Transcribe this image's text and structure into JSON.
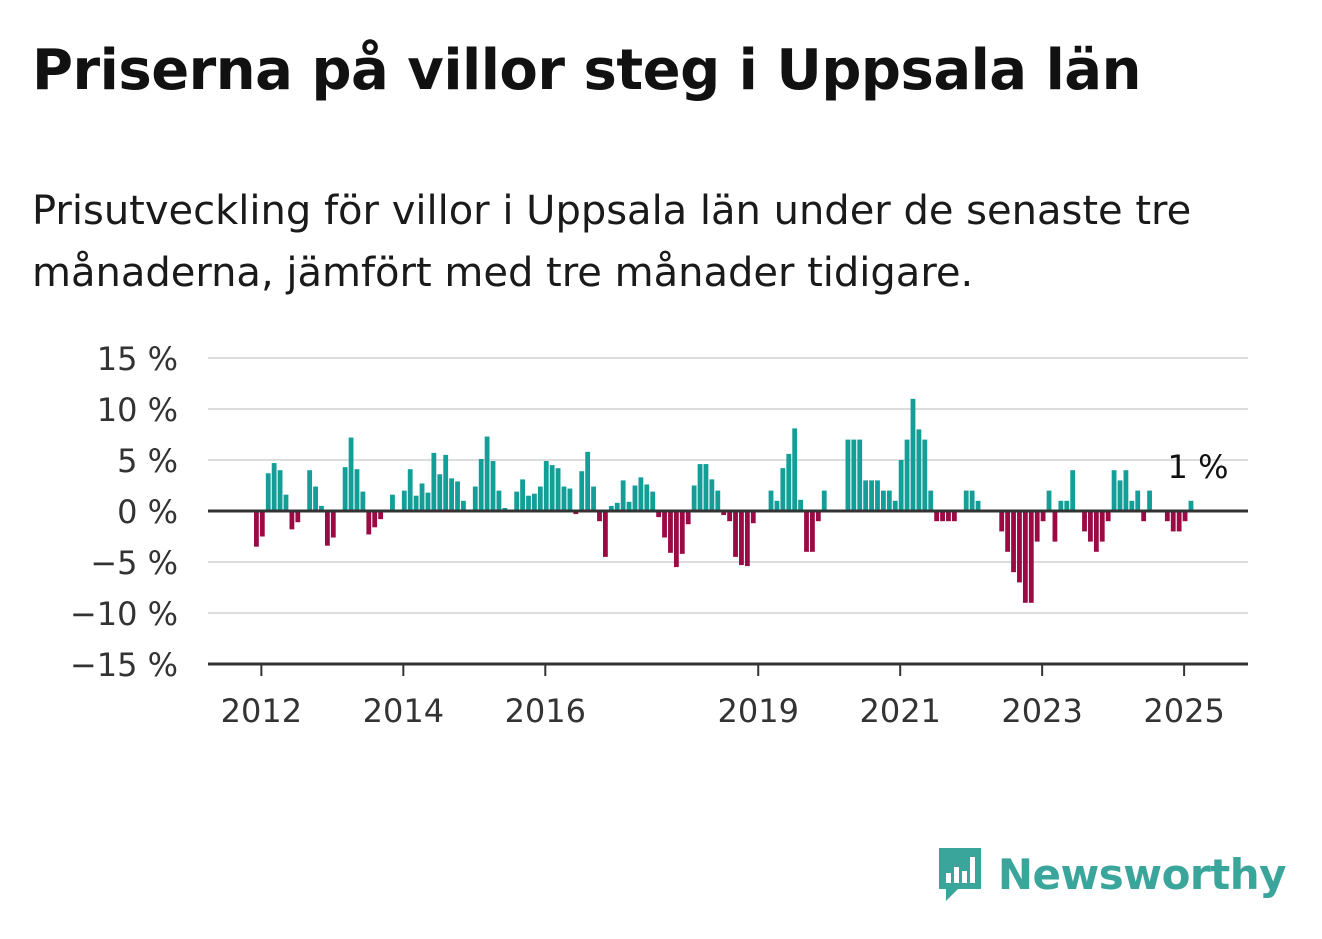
{
  "header": {
    "title": "Priserna på villor steg i Uppsala län",
    "subtitle": "Prisutveckling för villor i Uppsala län under de senaste tre månaderna, jämfört med tre månader tidigare."
  },
  "brand": {
    "name": "Newsworthy",
    "icon": "newsworthy-logo-icon",
    "color": "#3aa59b"
  },
  "chart_data": {
    "type": "bar",
    "unit": "%",
    "y_ticks": [
      15,
      10,
      5,
      0,
      -5,
      -10,
      -15
    ],
    "y_tick_labels": [
      "15 %",
      "10 %",
      "5 %",
      "0 %",
      "−5 %",
      "−10 %",
      "−15 %"
    ],
    "ylim": [
      -15,
      15
    ],
    "x_tick_labels": [
      "2012",
      "2014",
      "2016",
      "2019",
      "2021",
      "2023",
      "2025"
    ],
    "x_tick_years": [
      2012,
      2014,
      2016,
      2019,
      2021,
      2023,
      2025
    ],
    "x_start": "2011-12",
    "last_value_label": "1 %",
    "colors": {
      "positive": "#139e98",
      "negative": "#9b0a45",
      "grid": "#dddddd",
      "axis": "#333333"
    },
    "grid": true,
    "values": [
      null,
      -3.5,
      -2.5,
      3.7,
      4.7,
      4,
      1.6,
      -1.8,
      -1.1,
      null,
      4,
      2.4,
      0.5,
      -3.4,
      -2.6,
      null,
      4.3,
      7.2,
      4.1,
      1.9,
      -2.3,
      -1.6,
      -0.8,
      null,
      1.6,
      null,
      2,
      4.1,
      1.5,
      2.7,
      1.8,
      5.7,
      3.6,
      5.5,
      3.2,
      2.9,
      1,
      null,
      2.4,
      5.1,
      7.3,
      4.9,
      2,
      0.3,
      null,
      1.9,
      3.1,
      1.5,
      1.7,
      2.4,
      4.9,
      4.5,
      4.2,
      2.4,
      2.2,
      -0.3,
      3.9,
      5.8,
      2.4,
      -1,
      -4.5,
      0.5,
      0.8,
      3,
      0.9,
      2.5,
      3.3,
      2.6,
      1.9,
      -0.6,
      -2.6,
      -4.1,
      -5.5,
      -4.2,
      -1.3,
      2.5,
      4.6,
      4.6,
      3.1,
      2,
      -0.4,
      -1,
      -4.5,
      -5.3,
      -5.4,
      -1.2,
      null,
      null,
      2,
      1,
      4.2,
      5.6,
      8.1,
      1.1,
      -4,
      -4,
      -1,
      2,
      null,
      null,
      null,
      7,
      7,
      7,
      3,
      3,
      3,
      2,
      2,
      1,
      5,
      7,
      11,
      8,
      7,
      2,
      -1,
      -1,
      -1,
      -1,
      null,
      2,
      2,
      1,
      null,
      null,
      null,
      -2,
      -4,
      -6,
      -7,
      -9,
      -9,
      -3,
      -1,
      2,
      -3,
      1,
      1,
      4,
      null,
      -2,
      -3,
      -4,
      -3,
      -1,
      4,
      3,
      4,
      1,
      2,
      -1,
      2,
      null,
      null,
      -1,
      -2,
      -2,
      -1,
      1
    ]
  }
}
